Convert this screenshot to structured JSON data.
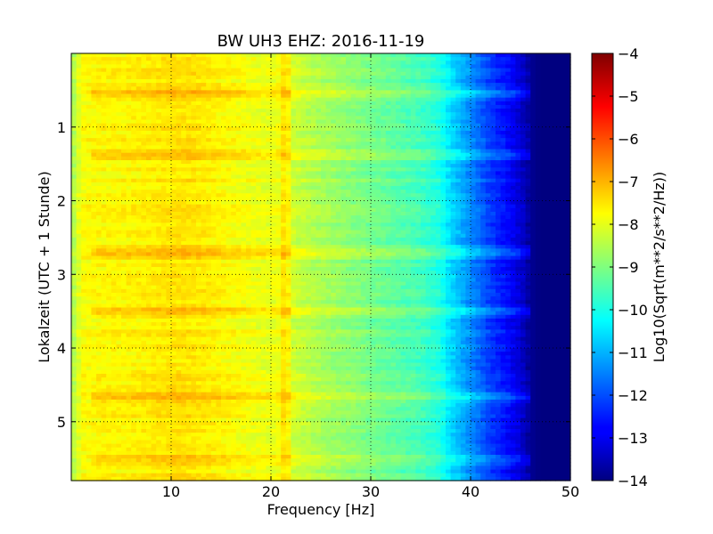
{
  "chart_data": {
    "type": "heatmap",
    "title": "BW UH3 EHZ: 2016-11-19",
    "xlabel": "Frequency [Hz]",
    "ylabel": "Lokalzeit (UTC + 1 Stunde)",
    "x_range": [
      0,
      50
    ],
    "y_range": [
      0,
      5.8
    ],
    "y_inverted": true,
    "x_ticks": [
      10,
      20,
      30,
      40,
      50
    ],
    "x_tick_labels": [
      "10",
      "20",
      "30",
      "40",
      "50"
    ],
    "y_ticks": [
      1,
      2,
      3,
      4,
      5
    ],
    "y_tick_labels": [
      "1",
      "2",
      "3",
      "4",
      "5"
    ],
    "grid": true,
    "colormap": "jet",
    "colorbar": {
      "label": "Log10(Sqrt(m**2/s**2/Hz))",
      "range": [
        -14,
        -4
      ],
      "ticks": [
        -4,
        -5,
        -6,
        -7,
        -8,
        -9,
        -10,
        -11,
        -12,
        -13,
        -14
      ],
      "tick_labels": [
        "−4",
        "−5",
        "−6",
        "−7",
        "−8",
        "−9",
        "−10",
        "−11",
        "−12",
        "−13",
        "−14"
      ]
    },
    "spectral_profile": {
      "frequency_hz": [
        0,
        1,
        3,
        5,
        8,
        10,
        12,
        15,
        18,
        20,
        21.5,
        22,
        25,
        28,
        30,
        33,
        35,
        37,
        38,
        40,
        42,
        44,
        45,
        46,
        47,
        50
      ],
      "log10_amplitude": [
        -8.7,
        -7.8,
        -7.7,
        -7.7,
        -7.6,
        -7.5,
        -7.5,
        -7.7,
        -7.9,
        -8.0,
        -7.8,
        -8.2,
        -8.6,
        -8.9,
        -9.1,
        -9.4,
        -9.6,
        -10.0,
        -10.6,
        -11.4,
        -12.2,
        -12.8,
        -13.2,
        -13.8,
        -14.0,
        -14.0
      ]
    },
    "bright_bands_hours": [
      0.55,
      1.38,
      2.7,
      3.5,
      4.68,
      5.52
    ],
    "bright_band_strength": [
      0.55,
      0.5,
      0.55,
      0.5,
      0.55,
      0.45
    ],
    "band_width_hours": 0.07,
    "spectral_line_hz": 21.6
  }
}
